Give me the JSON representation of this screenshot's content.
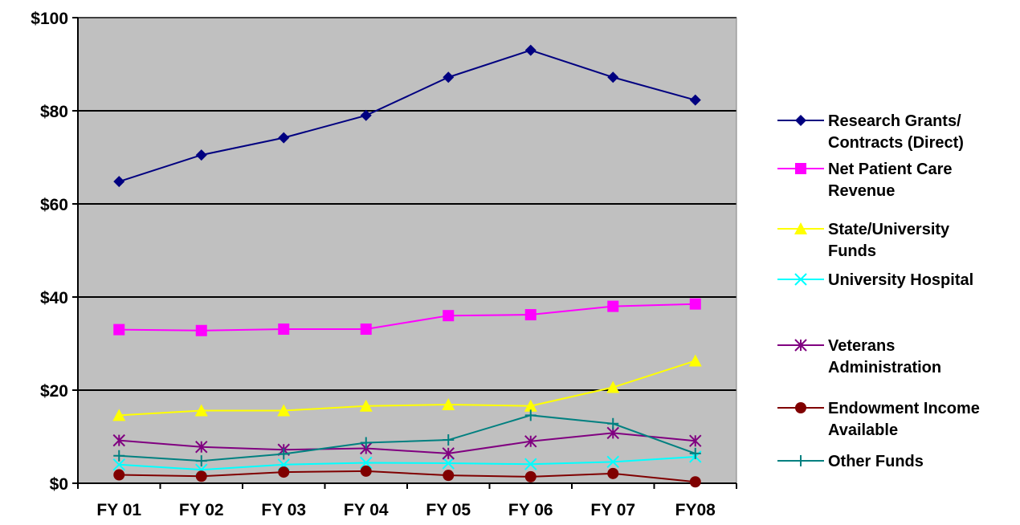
{
  "chart_data": {
    "type": "line",
    "categories": [
      "FY 01",
      "FY 02",
      "FY 03",
      "FY 04",
      "FY 05",
      "FY 06",
      "FY 07",
      "FY08"
    ],
    "y_ticks": [
      "$0",
      "$20",
      "$40",
      "$60",
      "$80",
      "$100"
    ],
    "ylim": [
      0,
      100
    ],
    "grid": true,
    "legend_position": "right",
    "plot_background": "#C0C0C0",
    "series": [
      {
        "name_lines": [
          "Research Grants/",
          "Contracts (Direct)"
        ],
        "color": "#000080",
        "marker": "diamond",
        "values": [
          64.8,
          70.5,
          74.2,
          79.0,
          87.2,
          93.0,
          87.2,
          82.3
        ]
      },
      {
        "name_lines": [
          "Net Patient Care",
          "Revenue"
        ],
        "color": "#FF00FF",
        "marker": "square",
        "values": [
          33.0,
          32.8,
          33.1,
          33.1,
          36.0,
          36.2,
          38.0,
          38.5
        ]
      },
      {
        "name_lines": [
          "State/University",
          "Funds"
        ],
        "color": "#FFFF00",
        "marker": "triangle",
        "values": [
          14.6,
          15.6,
          15.6,
          16.6,
          16.9,
          16.6,
          20.6,
          26.3
        ]
      },
      {
        "name_lines": [
          "University Hospital"
        ],
        "color": "#00FFFF",
        "marker": "x",
        "values": [
          4.0,
          2.9,
          4.0,
          4.4,
          4.3,
          4.1,
          4.6,
          5.7
        ]
      },
      {
        "name_lines": [
          "Veterans",
          "Administration"
        ],
        "color": "#800080",
        "marker": "asterisk",
        "values": [
          9.2,
          7.8,
          7.2,
          7.5,
          6.4,
          9.0,
          10.8,
          9.1
        ]
      },
      {
        "name_lines": [
          "Endowment Income",
          "Available"
        ],
        "color": "#800000",
        "marker": "circle",
        "values": [
          1.8,
          1.5,
          2.4,
          2.6,
          1.7,
          1.4,
          2.1,
          0.3
        ]
      },
      {
        "name_lines": [
          "Other Funds"
        ],
        "color": "#008080",
        "marker": "plus",
        "values": [
          5.9,
          4.8,
          6.3,
          8.7,
          9.3,
          14.6,
          12.8,
          6.4
        ]
      }
    ]
  }
}
